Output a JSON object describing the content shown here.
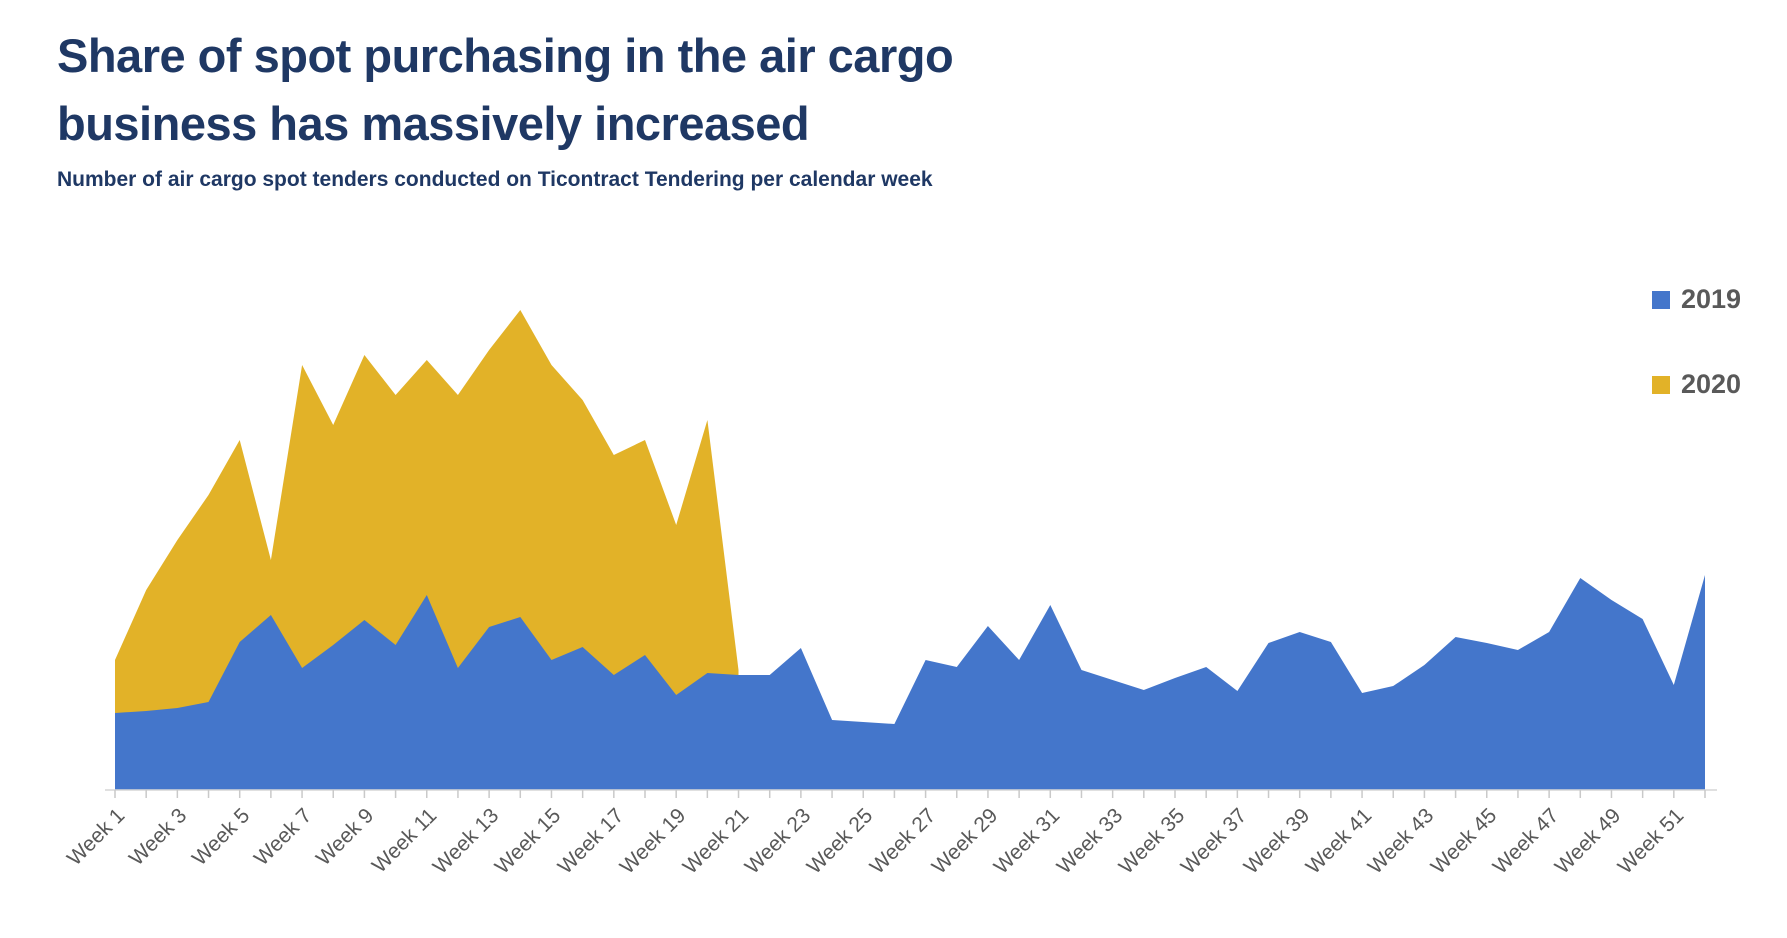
{
  "title": {
    "line1": "Share of spot purchasing in the air cargo",
    "line2": "business has massively increased",
    "color": "#1F3864"
  },
  "subtitle": {
    "text": "Number of air cargo spot tenders conducted on Ticontract Tendering per calendar week",
    "color": "#1F3864"
  },
  "legend": [
    {
      "label": "2019",
      "color": "#4476CB"
    },
    {
      "label": "2020",
      "color": "#E2B228"
    }
  ],
  "colors": {
    "background": "#FFFFFF",
    "axis_line": "#D6D6D6",
    "tick_mark": "#C9C9C9",
    "x_label_text": "#595959"
  },
  "chart_data": {
    "type": "area",
    "title": "Share of spot purchasing in the air cargo business has massively increased",
    "subtitle": "Number of air cargo spot tenders conducted on Ticontract Tendering per calendar week",
    "xlabel": "",
    "ylabel": "",
    "y_axis_visible": false,
    "grid": false,
    "legend_position": "top-right",
    "ylim": [
      0,
      520
    ],
    "x_unit": "calendar week",
    "weeks_plotted": 52,
    "x_tick_labels": [
      "Week 1",
      "Week 3",
      "Week 5",
      "Week 7",
      "Week 9",
      "Week 11",
      "Week 13",
      "Week 15",
      "Week 17",
      "Week 19",
      "Week 21",
      "Week 23",
      "Week 25",
      "Week 27",
      "Week 29",
      "Week 31",
      "Week 33",
      "Week 35",
      "Week 37",
      "Week 39",
      "Week 41",
      "Week 43",
      "Week 45",
      "Week 47",
      "Week 49",
      "Week 51"
    ],
    "draw_order": [
      "2020",
      "2019"
    ],
    "series": [
      {
        "name": "2019",
        "color": "#4476CB",
        "first_week": 1,
        "values": [
          77,
          79,
          82,
          88,
          148,
          175,
          122,
          145,
          170,
          145,
          195,
          122,
          163,
          173,
          130,
          143,
          115,
          135,
          95,
          117,
          115,
          115,
          142,
          70,
          68,
          66,
          130,
          123,
          164,
          130,
          185,
          120,
          110,
          100,
          112,
          123,
          99,
          147,
          158,
          148,
          97,
          104,
          125,
          153,
          147,
          140,
          158,
          212,
          190,
          171,
          105,
          215
        ]
      },
      {
        "name": "2020",
        "color": "#E2B228",
        "first_week": 1,
        "values": [
          130,
          200,
          250,
          295,
          350,
          230,
          425,
          365,
          435,
          395,
          430,
          395,
          440,
          480,
          425,
          390,
          335,
          350,
          265,
          370,
          120
        ]
      }
    ]
  }
}
